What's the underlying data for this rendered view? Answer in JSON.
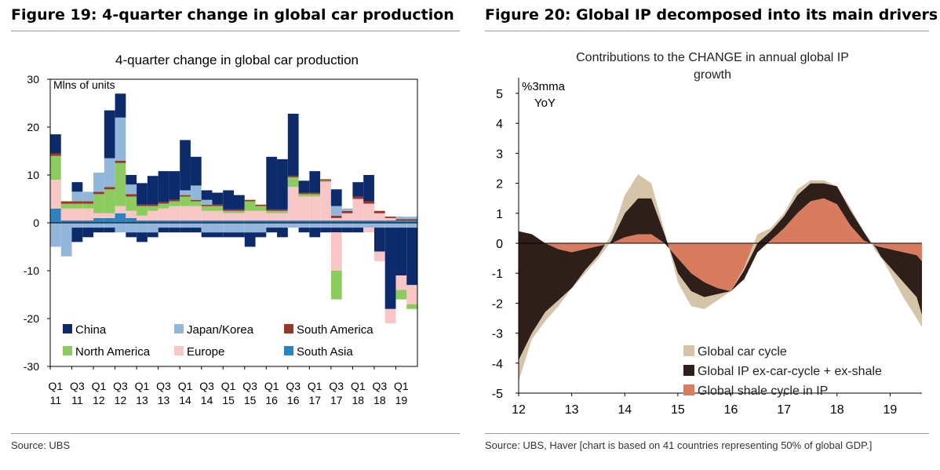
{
  "figures": [
    {
      "title": "Figure 19: 4-quarter change in global car production",
      "source": "Source:  UBS"
    },
    {
      "title": "Figure 20: Global IP decomposed into its main drivers",
      "source": "Source:  UBS, Haver [chart is based on 41 countries representing 50% of global GDP.]"
    }
  ],
  "chart_data": [
    {
      "type": "bar",
      "stacked": true,
      "title": "4-quarter change in global car production",
      "ylabel": "Mlns of units",
      "ylim": [
        -30,
        30
      ],
      "yticks": [
        30,
        20,
        10,
        0,
        -10,
        -20,
        -30
      ],
      "tick_labels": [
        [
          "Q1",
          "11"
        ],
        [
          "Q3",
          "11"
        ],
        [
          "Q1",
          "12"
        ],
        [
          "Q3",
          "12"
        ],
        [
          "Q1",
          "13"
        ],
        [
          "Q3",
          "13"
        ],
        [
          "Q1",
          "14"
        ],
        [
          "Q3",
          "14"
        ],
        [
          "Q1",
          "15"
        ],
        [
          "Q3",
          "15"
        ],
        [
          "Q1",
          "16"
        ],
        [
          "Q3",
          "16"
        ],
        [
          "Q1",
          "17"
        ],
        [
          "Q3",
          "17"
        ],
        [
          "Q1",
          "18"
        ],
        [
          "Q3",
          "18"
        ],
        [
          "Q1",
          "19"
        ]
      ],
      "categories": [
        "Q1 11",
        "Q2 11",
        "Q3 11",
        "Q4 11",
        "Q1 12",
        "Q2 12",
        "Q3 12",
        "Q4 12",
        "Q1 13",
        "Q2 13",
        "Q3 13",
        "Q4 13",
        "Q1 14",
        "Q2 14",
        "Q3 14",
        "Q4 14",
        "Q1 15",
        "Q2 15",
        "Q3 15",
        "Q4 15",
        "Q1 16",
        "Q2 16",
        "Q3 16",
        "Q4 16",
        "Q1 17",
        "Q2 17",
        "Q3 17",
        "Q4 17",
        "Q1 18",
        "Q2 18",
        "Q3 18",
        "Q4 18",
        "Q1 19",
        "Q2 19"
      ],
      "series": [
        {
          "name": "South Asia",
          "color": "#2e83bf",
          "values": [
            3,
            0.5,
            0.5,
            0.5,
            1,
            1,
            2,
            1,
            0.5,
            0.5,
            0.5,
            0.5,
            0.5,
            0.5,
            0.5,
            0.5,
            0.5,
            0.5,
            0.5,
            0.5,
            0.5,
            0.5,
            0.5,
            0.5,
            0.5,
            0.5,
            0.5,
            0.5,
            0.5,
            0.5,
            0.5,
            0.5,
            0.5,
            0.5
          ]
        },
        {
          "name": "Europe",
          "color": "#f9c6c6",
          "values": [
            6,
            2.5,
            2.5,
            2.5,
            1,
            1,
            1.5,
            1.5,
            1,
            2,
            2.5,
            3,
            3,
            3,
            2,
            2,
            1.5,
            1.5,
            2,
            2,
            1.5,
            1.5,
            7,
            5,
            5,
            8,
            0.5,
            1.5,
            4.5,
            3.5,
            1.5,
            0.5,
            0,
            0
          ]
        },
        {
          "name": "North America",
          "color": "#8ccc5e",
          "values": [
            5,
            1,
            1,
            1,
            4,
            5,
            9,
            3,
            2,
            1,
            1,
            1,
            2,
            1,
            1,
            1,
            0.5,
            0.5,
            2,
            1,
            0.5,
            0.5,
            2,
            0.5,
            0.5,
            0.3,
            0,
            0,
            0,
            0,
            0,
            0,
            0,
            0
          ]
        },
        {
          "name": "South America",
          "color": "#9a3628",
          "values": [
            0.5,
            0.5,
            0.5,
            0.5,
            0.5,
            0.5,
            0.5,
            0.5,
            0.3,
            0.3,
            0.3,
            0.3,
            0.3,
            0.3,
            0.3,
            0.3,
            0.3,
            0.3,
            0.3,
            0.3,
            0.3,
            0.3,
            0.3,
            0.3,
            0.3,
            0.3,
            0.5,
            0.5,
            0.5,
            0.5,
            0.5,
            0.3,
            0.3,
            0.3
          ]
        },
        {
          "name": "Japan/Korea",
          "color": "#93b7db",
          "values": [
            0,
            0,
            2,
            2,
            4,
            6,
            9,
            2,
            0,
            0,
            0,
            0,
            1,
            3,
            1,
            0,
            0,
            0,
            0,
            0,
            0,
            0,
            0,
            0,
            0,
            0,
            2,
            0.5,
            0,
            0,
            0,
            0,
            0.5,
            0.5
          ]
        },
        {
          "name": "China",
          "color": "#0d2a6b",
          "values": [
            4,
            0,
            2,
            0,
            0,
            10,
            5,
            2,
            4.5,
            6,
            6.5,
            6,
            10.5,
            6,
            2,
            2.5,
            4,
            3,
            0,
            0,
            11,
            10.5,
            13,
            2.5,
            4.5,
            0,
            3.5,
            0,
            3,
            5.5,
            0,
            0,
            0,
            0
          ]
        }
      ],
      "negatives": [
        {
          "name": "Japan/Korea",
          "values": [
            -5,
            -7,
            -1,
            -1,
            -1,
            -1,
            -2,
            -2,
            -2,
            -2,
            -1,
            -1,
            -1,
            -1,
            -2,
            -2,
            -2,
            -2,
            -2,
            -2,
            -1,
            -1,
            -1,
            -1,
            -1,
            -1,
            -1,
            -1,
            -1,
            -1,
            -1,
            -1,
            -1,
            -1
          ]
        },
        {
          "name": "China",
          "values": [
            0,
            0,
            -3,
            -2,
            -1,
            -1,
            0,
            -1,
            -2,
            -1,
            -1,
            -1,
            -1,
            -1,
            -1,
            -1,
            -1,
            -1,
            -3,
            -1,
            -1,
            -2,
            0,
            -1,
            -2,
            -1,
            -1,
            -1,
            -1,
            0,
            -5,
            -17,
            -10,
            -12
          ]
        },
        {
          "name": "Europe",
          "values": [
            0,
            0,
            0,
            0,
            0,
            0,
            0,
            0,
            0,
            0,
            0,
            0,
            0,
            0,
            0,
            0,
            0,
            0,
            0,
            0,
            0,
            0,
            0,
            0,
            0,
            0,
            -8,
            0,
            0,
            -1,
            -2,
            -3,
            -3,
            -4
          ]
        },
        {
          "name": "North America",
          "values": [
            0,
            0,
            0,
            0,
            0,
            0,
            0,
            0,
            0,
            0,
            0,
            0,
            0,
            0,
            0,
            0,
            0,
            0,
            0,
            0,
            0,
            0,
            0,
            0,
            0,
            0,
            -6,
            0,
            0,
            0,
            0,
            0,
            -2,
            -1
          ]
        }
      ]
    },
    {
      "type": "area",
      "stacked": true,
      "title": "Contributions  to the CHANGE  in annual global IP growth",
      "ylabel": [
        "%3mma",
        "YoY"
      ],
      "ylim": [
        -5,
        5
      ],
      "yticks": [
        5,
        4,
        3,
        2,
        1,
        0,
        -1,
        -2,
        -3,
        -4,
        -5
      ],
      "xlim": [
        2012,
        2019.6
      ],
      "xticks": [
        "12",
        "13",
        "14",
        "15",
        "16",
        "17",
        "18",
        "19"
      ],
      "x": [
        2012.0,
        2012.25,
        2012.5,
        2012.75,
        2013.0,
        2013.25,
        2013.5,
        2013.75,
        2014.0,
        2014.25,
        2014.5,
        2014.75,
        2015.0,
        2015.25,
        2015.5,
        2015.75,
        2016.0,
        2016.25,
        2016.5,
        2016.75,
        2017.0,
        2017.25,
        2017.5,
        2017.75,
        2018.0,
        2018.25,
        2018.5,
        2018.75,
        2019.0,
        2019.25,
        2019.5,
        2019.6
      ],
      "series": [
        {
          "name": "Global shale cycle in IP",
          "color": "#d97b5e",
          "values": [
            0.4,
            0.3,
            0.0,
            -0.2,
            -0.3,
            -0.2,
            -0.1,
            0.0,
            0.2,
            0.3,
            0.3,
            0.0,
            -0.5,
            -1.0,
            -1.3,
            -1.5,
            -1.6,
            -1.2,
            -0.3,
            0.1,
            0.5,
            1.0,
            1.4,
            1.5,
            1.3,
            0.6,
            0.1,
            -0.1,
            -0.2,
            -0.3,
            -0.4,
            -0.6
          ]
        },
        {
          "name": "Global IP ex-car-cycle + ex-shale",
          "color": "#2e1f1a",
          "values": [
            -4.3,
            -3.3,
            -2.3,
            -1.7,
            -1.2,
            -0.8,
            -0.4,
            0.1,
            0.8,
            1.2,
            1.2,
            0.3,
            -0.5,
            -0.6,
            -0.5,
            -0.2,
            0.0,
            0.3,
            0.3,
            0.3,
            0.4,
            0.6,
            0.6,
            0.5,
            0.6,
            0.5,
            0.3,
            -0.2,
            -0.6,
            -1.0,
            -1.4,
            -1.8
          ]
        },
        {
          "name": "Global car cycle",
          "color": "#d6c4a9",
          "values": [
            -0.7,
            -0.2,
            -0.3,
            -0.2,
            0.0,
            0.1,
            0.1,
            0.2,
            0.6,
            0.8,
            0.5,
            0.1,
            -0.3,
            -0.5,
            -0.4,
            -0.2,
            0.0,
            0.1,
            0.3,
            0.1,
            0.1,
            0.2,
            0.1,
            0.1,
            0.0,
            0.1,
            0.0,
            0.1,
            -0.2,
            -0.5,
            -0.7,
            -0.4
          ]
        }
      ]
    }
  ]
}
